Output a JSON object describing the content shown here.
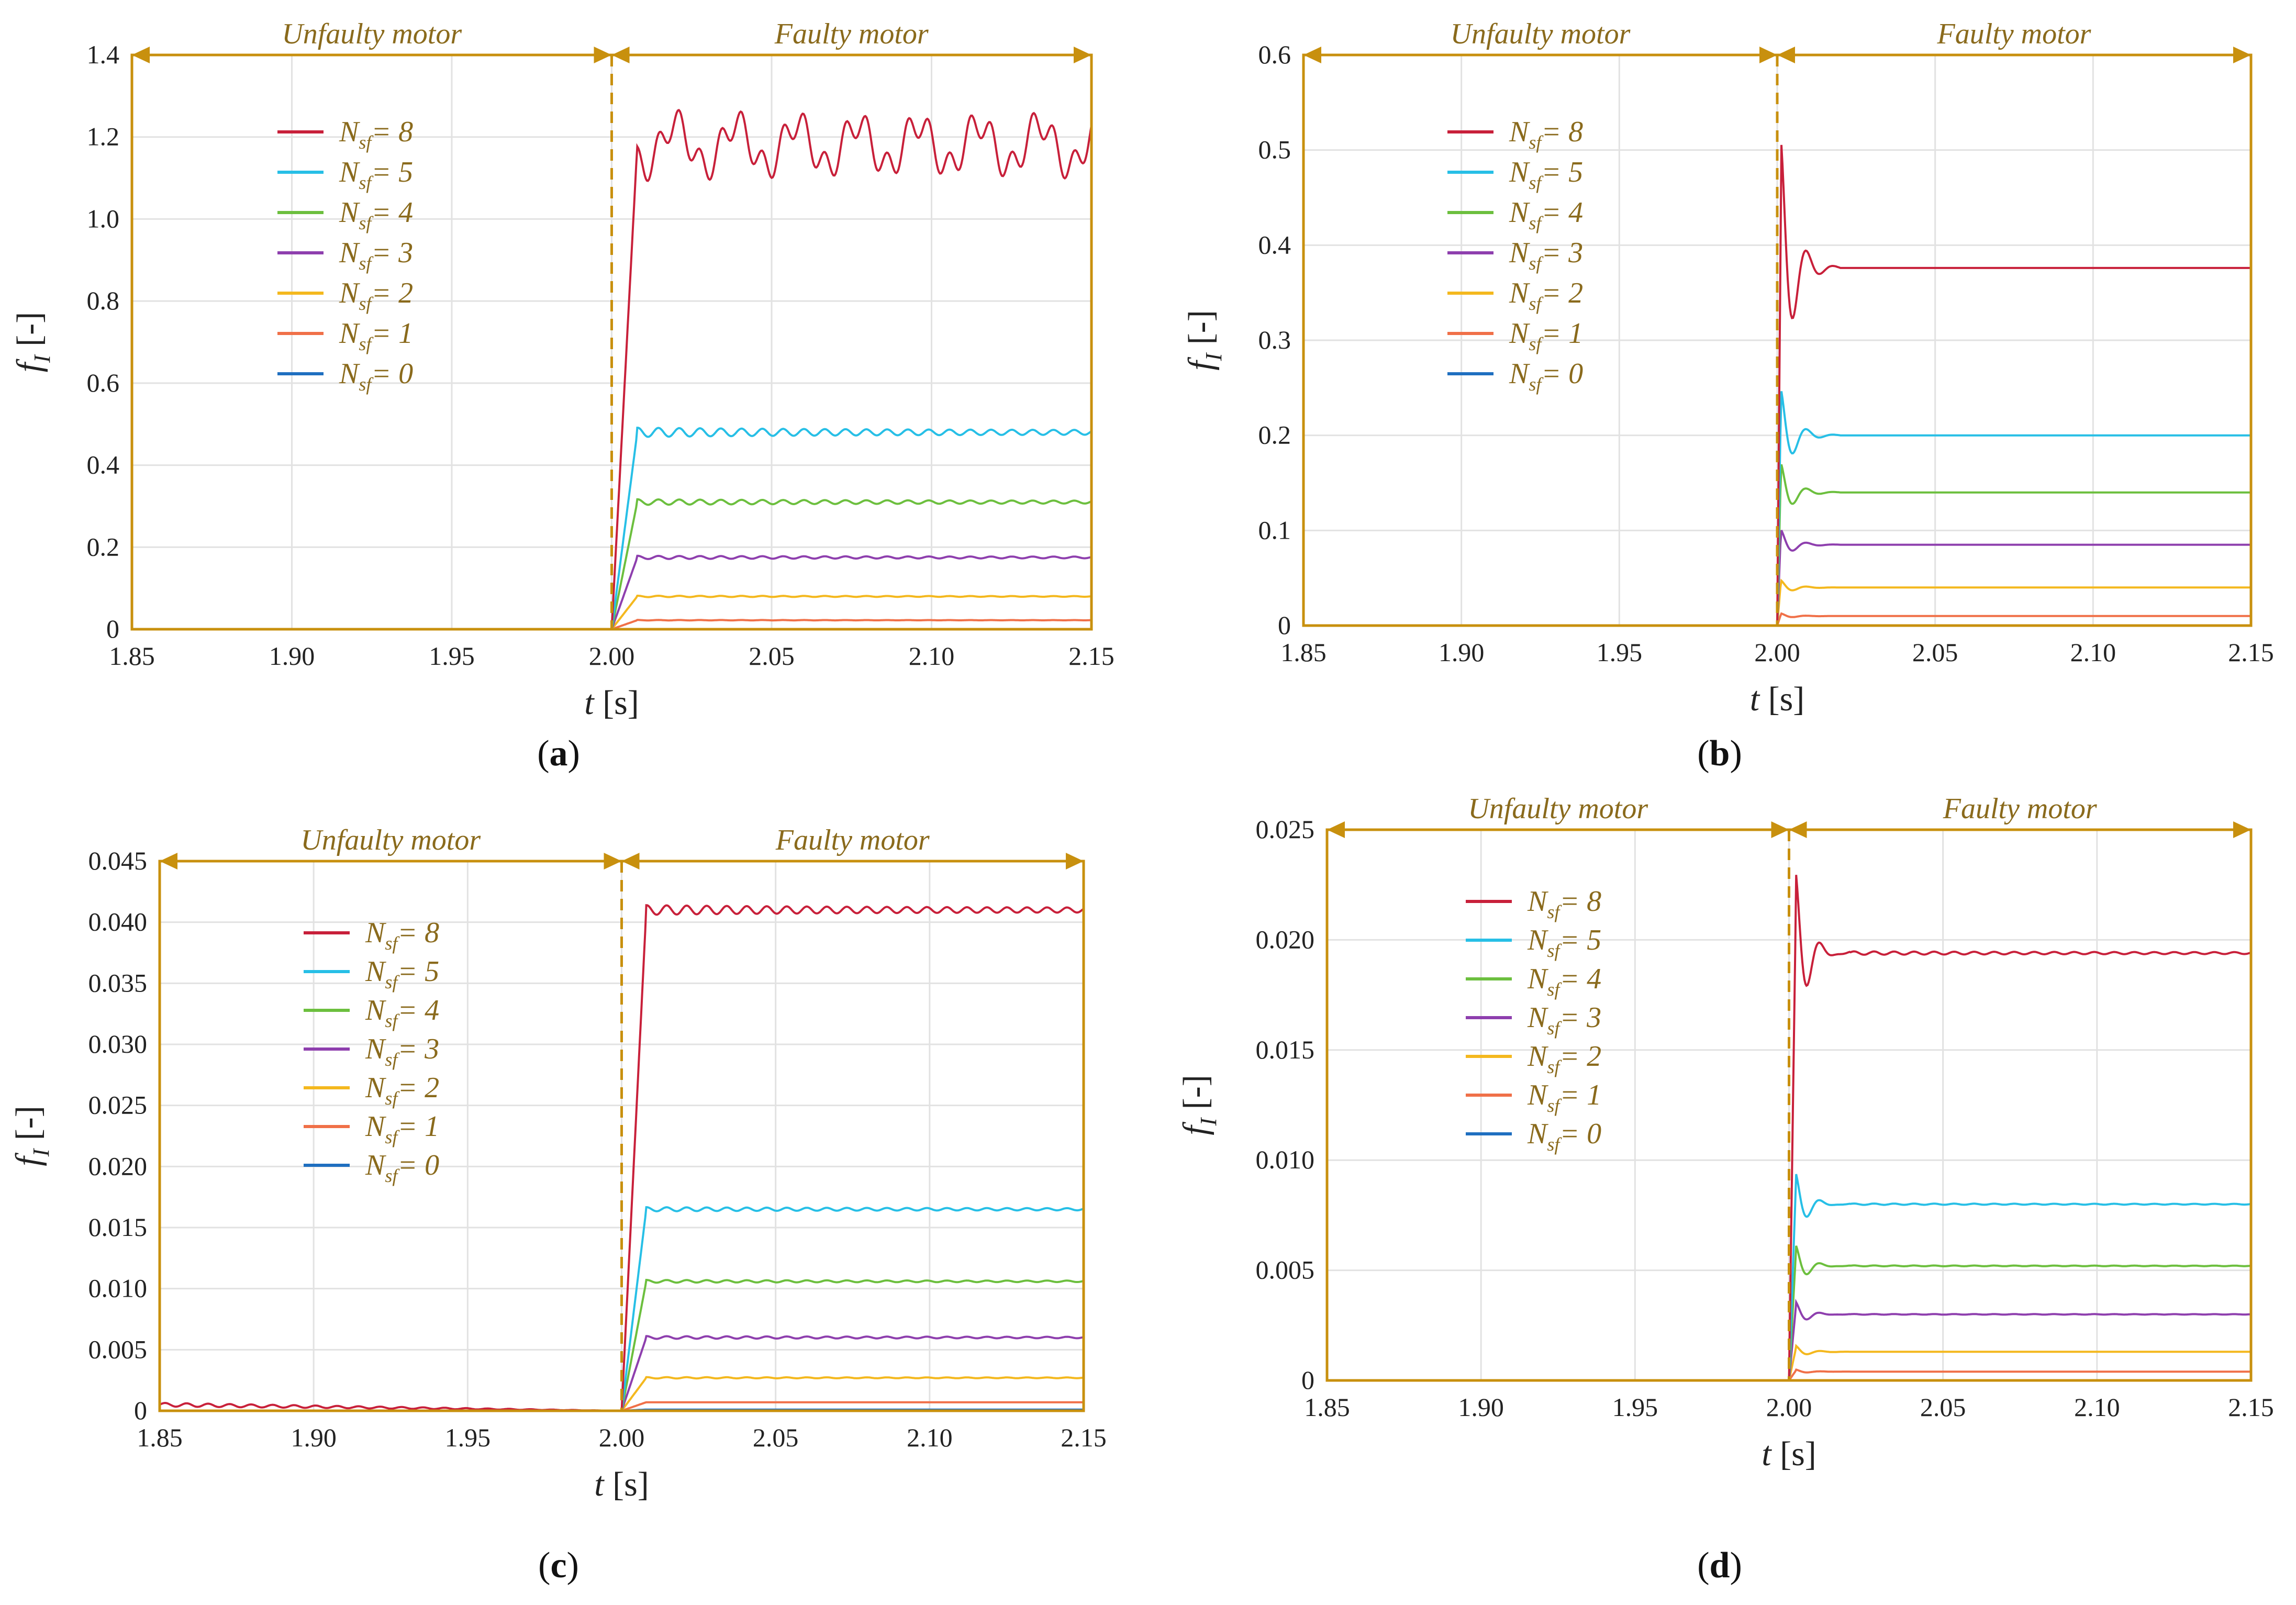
{
  "colors": {
    "frame": "#c8900e",
    "region_text": "#8a6a1c",
    "legend_text": "#8a6a1c",
    "grid": "#e2e2e2",
    "axis_text": "#222222"
  },
  "legend_prefix": "N",
  "legend_subscript": "sf",
  "chart_data": [
    {
      "id": "a",
      "caption": "a",
      "type": "line",
      "xlabel_var": "t",
      "xlabel_unit": "[s]",
      "ylabel_var": "f",
      "ylabel_sub": "I",
      "ylabel_unit": "[-]",
      "xlim": [
        1.85,
        2.15
      ],
      "ylim": [
        0,
        1.4
      ],
      "xticks": [
        "1.85",
        "1.90",
        "1.95",
        "2.00",
        "2.05",
        "2.10",
        "2.15"
      ],
      "yticks": [
        "0",
        "0.2",
        "0.4",
        "0.6",
        "0.8",
        "1.0",
        "1.2",
        "1.4"
      ],
      "region_left": "Unfaulty motor",
      "region_right": "Faulty motor",
      "fault_time": 2.0,
      "series": [
        {
          "label": "= 8",
          "color": "#c8203a",
          "steady": 1.18,
          "rise": 0.008,
          "overshoot": 0,
          "ripple": 0.06,
          "noise": 1
        },
        {
          "label": "= 5",
          "color": "#27bfe6",
          "steady": 0.48,
          "rise": 0.008,
          "overshoot": 0,
          "ripple": 0.02,
          "noise": 0
        },
        {
          "label": "= 4",
          "color": "#6cbf3e",
          "steady": 0.31,
          "rise": 0.008,
          "overshoot": 0,
          "ripple": 0.012,
          "noise": 0
        },
        {
          "label": "= 3",
          "color": "#8e3fae",
          "steady": 0.175,
          "rise": 0.008,
          "overshoot": 0,
          "ripple": 0.007,
          "noise": 0
        },
        {
          "label": "= 2",
          "color": "#f4b81e",
          "steady": 0.08,
          "rise": 0.008,
          "overshoot": 0,
          "ripple": 0.003,
          "noise": 0
        },
        {
          "label": "= 1",
          "color": "#f07048",
          "steady": 0.022,
          "rise": 0.008,
          "overshoot": 0,
          "ripple": 0.001,
          "noise": 0
        },
        {
          "label": "= 0",
          "color": "#1f6fc0",
          "steady": 0.0,
          "rise": 0.008,
          "overshoot": 0,
          "ripple": 0,
          "noise": 0
        }
      ]
    },
    {
      "id": "b",
      "caption": "b",
      "type": "line",
      "xlabel_var": "t",
      "xlabel_unit": "[s]",
      "ylabel_var": "f",
      "ylabel_sub": "I",
      "ylabel_unit": "[-]",
      "xlim": [
        1.85,
        2.15
      ],
      "ylim": [
        0,
        0.6
      ],
      "xticks": [
        "1.85",
        "1.90",
        "1.95",
        "2.00",
        "2.05",
        "2.10",
        "2.15"
      ],
      "yticks": [
        "0",
        "0.1",
        "0.2",
        "0.3",
        "0.4",
        "0.5",
        "0.6"
      ],
      "region_left": "Unfaulty motor",
      "region_right": "Faulty motor",
      "fault_time": 2.0,
      "series": [
        {
          "label": "= 8",
          "color": "#c8203a",
          "steady": 0.376,
          "rise": 0.001,
          "overshoot": 0.145,
          "ripple": 0,
          "noise": 0
        },
        {
          "label": "= 5",
          "color": "#27bfe6",
          "steady": 0.2,
          "rise": 0.001,
          "overshoot": 0.052,
          "ripple": 0,
          "noise": 0
        },
        {
          "label": "= 4",
          "color": "#6cbf3e",
          "steady": 0.14,
          "rise": 0.001,
          "overshoot": 0.033,
          "ripple": 0,
          "noise": 0
        },
        {
          "label": "= 3",
          "color": "#8e3fae",
          "steady": 0.085,
          "rise": 0.001,
          "overshoot": 0.017,
          "ripple": 0,
          "noise": 0
        },
        {
          "label": "= 2",
          "color": "#f4b81e",
          "steady": 0.04,
          "rise": 0.001,
          "overshoot": 0.008,
          "ripple": 0,
          "noise": 0
        },
        {
          "label": "= 1",
          "color": "#f07048",
          "steady": 0.01,
          "rise": 0.001,
          "overshoot": 0.003,
          "ripple": 0,
          "noise": 0
        },
        {
          "label": "= 0",
          "color": "#1f6fc0",
          "steady": 0.0,
          "rise": 0.001,
          "overshoot": 0,
          "ripple": 0,
          "noise": 0
        }
      ]
    },
    {
      "id": "c",
      "caption": "c",
      "type": "line",
      "xlabel_var": "t",
      "xlabel_unit": "[s]",
      "ylabel_var": "f",
      "ylabel_sub": "I",
      "ylabel_unit": "[-]",
      "xlim": [
        1.85,
        2.15
      ],
      "ylim": [
        0,
        0.045
      ],
      "xticks": [
        "1.85",
        "1.90",
        "1.95",
        "2.00",
        "2.05",
        "2.10",
        "2.15"
      ],
      "yticks": [
        "0",
        "0.005",
        "0.010",
        "0.015",
        "0.020",
        "0.025",
        "0.030",
        "0.035",
        "0.040",
        "0.045"
      ],
      "region_left": "Unfaulty motor",
      "region_right": "Faulty motor",
      "fault_time": 2.0,
      "series": [
        {
          "label": "= 8",
          "color": "#c8203a",
          "steady": 0.041,
          "rise": 0.008,
          "overshoot": 0,
          "ripple": 0.0007,
          "noise": 0
        },
        {
          "label": "= 5",
          "color": "#27bfe6",
          "steady": 0.0165,
          "rise": 0.008,
          "overshoot": 0,
          "ripple": 0.0003,
          "noise": 0
        },
        {
          "label": "= 4",
          "color": "#6cbf3e",
          "steady": 0.0106,
          "rise": 0.008,
          "overshoot": 0,
          "ripple": 0.0002,
          "noise": 0
        },
        {
          "label": "= 3",
          "color": "#8e3fae",
          "steady": 0.006,
          "rise": 0.008,
          "overshoot": 0,
          "ripple": 0.0002,
          "noise": 0
        },
        {
          "label": "= 2",
          "color": "#f4b81e",
          "steady": 0.0027,
          "rise": 0.008,
          "overshoot": 0,
          "ripple": 0.0001,
          "noise": 0
        },
        {
          "label": "= 1",
          "color": "#f07048",
          "steady": 0.0007,
          "rise": 0.008,
          "overshoot": 0,
          "ripple": 0,
          "noise": 0
        },
        {
          "label": "= 0",
          "color": "#1f6fc0",
          "steady": 0.0001,
          "rise": 0.008,
          "overshoot": 0,
          "ripple": 0,
          "noise": 0
        }
      ]
    },
    {
      "id": "d",
      "caption": "d",
      "type": "line",
      "xlabel_var": "t",
      "xlabel_unit": "[s]",
      "ylabel_var": "f",
      "ylabel_sub": "I",
      "ylabel_unit": "[-]",
      "xlim": [
        1.85,
        2.15
      ],
      "ylim": [
        0,
        0.025
      ],
      "xticks": [
        "1.85",
        "1.90",
        "1.95",
        "2.00",
        "2.05",
        "2.10",
        "2.15"
      ],
      "yticks": [
        "0",
        "0.005",
        "0.010",
        "0.015",
        "0.020",
        "0.025"
      ],
      "region_left": "Unfaulty motor",
      "region_right": "Faulty motor",
      "fault_time": 2.0,
      "series": [
        {
          "label": "= 8",
          "color": "#c8203a",
          "steady": 0.0194,
          "rise": 0.002,
          "overshoot": 0.0039,
          "ripple": 0.00015,
          "noise": 0
        },
        {
          "label": "= 5",
          "color": "#27bfe6",
          "steady": 0.008,
          "rise": 0.002,
          "overshoot": 0.0015,
          "ripple": 6e-05,
          "noise": 0
        },
        {
          "label": "= 4",
          "color": "#6cbf3e",
          "steady": 0.0052,
          "rise": 0.002,
          "overshoot": 0.001,
          "ripple": 4e-05,
          "noise": 0
        },
        {
          "label": "= 3",
          "color": "#8e3fae",
          "steady": 0.003,
          "rise": 0.002,
          "overshoot": 0.0006,
          "ripple": 3e-05,
          "noise": 0
        },
        {
          "label": "= 2",
          "color": "#f4b81e",
          "steady": 0.0013,
          "rise": 0.002,
          "overshoot": 0.0003,
          "ripple": 0,
          "noise": 0
        },
        {
          "label": "= 1",
          "color": "#f07048",
          "steady": 0.0004,
          "rise": 0.002,
          "overshoot": 0.0001,
          "ripple": 0,
          "noise": 0
        },
        {
          "label": "= 0",
          "color": "#1f6fc0",
          "steady": 0.0,
          "rise": 0.002,
          "overshoot": 0,
          "ripple": 0,
          "noise": 0
        }
      ]
    }
  ]
}
